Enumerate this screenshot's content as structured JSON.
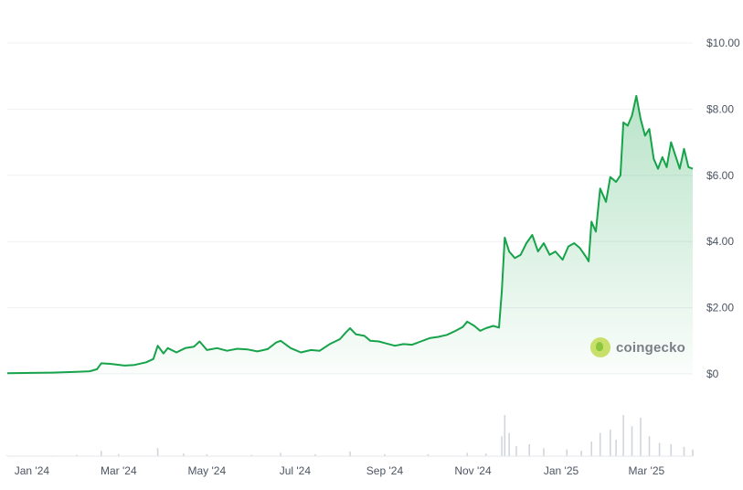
{
  "chart_data": {
    "type": "area",
    "title": "",
    "xlabel": "",
    "ylabel": "",
    "x_tick_labels": [
      "Jan '24",
      "Mar '24",
      "May '24",
      "Jul '24",
      "Sep '24",
      "Nov '24",
      "Jan '25",
      "Mar '25"
    ],
    "y_tick_labels": [
      "$0",
      "$2.00",
      "$4.00",
      "$6.00",
      "$8.00",
      "$10.00"
    ],
    "ylim": [
      0,
      10
    ],
    "grid": true,
    "line_color": "#16a34a",
    "fill_color": "#16a34a",
    "price_series": [
      [
        "2023-12-15",
        0.02
      ],
      [
        "2024-01-01",
        0.03
      ],
      [
        "2024-01-15",
        0.04
      ],
      [
        "2024-02-01",
        0.06
      ],
      [
        "2024-02-10",
        0.08
      ],
      [
        "2024-02-15",
        0.14
      ],
      [
        "2024-02-18",
        0.32
      ],
      [
        "2024-02-25",
        0.3
      ],
      [
        "2024-03-05",
        0.25
      ],
      [
        "2024-03-12",
        0.27
      ],
      [
        "2024-03-20",
        0.35
      ],
      [
        "2024-03-25",
        0.45
      ],
      [
        "2024-03-28",
        0.85
      ],
      [
        "2024-04-01",
        0.62
      ],
      [
        "2024-04-04",
        0.78
      ],
      [
        "2024-04-10",
        0.65
      ],
      [
        "2024-04-16",
        0.78
      ],
      [
        "2024-04-22",
        0.82
      ],
      [
        "2024-04-26",
        0.98
      ],
      [
        "2024-05-01",
        0.72
      ],
      [
        "2024-05-08",
        0.78
      ],
      [
        "2024-05-15",
        0.7
      ],
      [
        "2024-05-22",
        0.76
      ],
      [
        "2024-05-29",
        0.74
      ],
      [
        "2024-06-05",
        0.68
      ],
      [
        "2024-06-12",
        0.75
      ],
      [
        "2024-06-18",
        0.95
      ],
      [
        "2024-06-21",
        1.0
      ],
      [
        "2024-06-28",
        0.78
      ],
      [
        "2024-07-05",
        0.65
      ],
      [
        "2024-07-12",
        0.72
      ],
      [
        "2024-07-18",
        0.7
      ],
      [
        "2024-07-25",
        0.9
      ],
      [
        "2024-08-01",
        1.05
      ],
      [
        "2024-08-05",
        1.25
      ],
      [
        "2024-08-08",
        1.38
      ],
      [
        "2024-08-12",
        1.2
      ],
      [
        "2024-08-18",
        1.15
      ],
      [
        "2024-08-22",
        1.0
      ],
      [
        "2024-08-28",
        0.98
      ],
      [
        "2024-09-02",
        0.92
      ],
      [
        "2024-09-08",
        0.85
      ],
      [
        "2024-09-14",
        0.9
      ],
      [
        "2024-09-20",
        0.88
      ],
      [
        "2024-09-26",
        0.98
      ],
      [
        "2024-10-02",
        1.08
      ],
      [
        "2024-10-08",
        1.12
      ],
      [
        "2024-10-14",
        1.18
      ],
      [
        "2024-10-20",
        1.3
      ],
      [
        "2024-10-25",
        1.42
      ],
      [
        "2024-10-28",
        1.58
      ],
      [
        "2024-11-02",
        1.45
      ],
      [
        "2024-11-06",
        1.3
      ],
      [
        "2024-11-10",
        1.38
      ],
      [
        "2024-11-15",
        1.45
      ],
      [
        "2024-11-19",
        1.4
      ],
      [
        "2024-11-21",
        2.5
      ],
      [
        "2024-11-23",
        4.12
      ],
      [
        "2024-11-26",
        3.7
      ],
      [
        "2024-11-30",
        3.5
      ],
      [
        "2024-12-04",
        3.6
      ],
      [
        "2024-12-08",
        3.95
      ],
      [
        "2024-12-12",
        4.2
      ],
      [
        "2024-12-16",
        3.7
      ],
      [
        "2024-12-20",
        3.95
      ],
      [
        "2024-12-24",
        3.6
      ],
      [
        "2024-12-28",
        3.7
      ],
      [
        "2025-01-02",
        3.45
      ],
      [
        "2025-01-06",
        3.85
      ],
      [
        "2025-01-10",
        3.95
      ],
      [
        "2025-01-14",
        3.8
      ],
      [
        "2025-01-18",
        3.55
      ],
      [
        "2025-01-20",
        3.4
      ],
      [
        "2025-01-22",
        4.6
      ],
      [
        "2025-01-25",
        4.3
      ],
      [
        "2025-01-28",
        5.6
      ],
      [
        "2025-02-01",
        5.2
      ],
      [
        "2025-02-04",
        5.95
      ],
      [
        "2025-02-08",
        5.8
      ],
      [
        "2025-02-11",
        6.0
      ],
      [
        "2025-02-13",
        7.6
      ],
      [
        "2025-02-16",
        7.5
      ],
      [
        "2025-02-19",
        7.8
      ],
      [
        "2025-02-22",
        8.4
      ],
      [
        "2025-02-25",
        7.7
      ],
      [
        "2025-02-28",
        7.2
      ],
      [
        "2025-03-03",
        7.4
      ],
      [
        "2025-03-06",
        6.5
      ],
      [
        "2025-03-09",
        6.2
      ],
      [
        "2025-03-12",
        6.55
      ],
      [
        "2025-03-15",
        6.25
      ],
      [
        "2025-03-18",
        7.0
      ],
      [
        "2025-03-21",
        6.6
      ],
      [
        "2025-03-24",
        6.2
      ],
      [
        "2025-03-27",
        6.8
      ],
      [
        "2025-03-30",
        6.25
      ],
      [
        "2025-04-02",
        6.2
      ]
    ],
    "volume_series": [
      [
        "2023-12-15",
        0.01
      ],
      [
        "2024-01-15",
        0.01
      ],
      [
        "2024-02-01",
        0.02
      ],
      [
        "2024-02-18",
        0.08
      ],
      [
        "2024-03-01",
        0.03
      ],
      [
        "2024-03-28",
        0.12
      ],
      [
        "2024-04-15",
        0.04
      ],
      [
        "2024-05-01",
        0.03
      ],
      [
        "2024-06-01",
        0.02
      ],
      [
        "2024-06-21",
        0.05
      ],
      [
        "2024-07-15",
        0.03
      ],
      [
        "2024-08-08",
        0.07
      ],
      [
        "2024-09-01",
        0.03
      ],
      [
        "2024-10-01",
        0.03
      ],
      [
        "2024-10-28",
        0.05
      ],
      [
        "2024-11-10",
        0.04
      ],
      [
        "2024-11-21",
        0.3
      ],
      [
        "2024-11-23",
        0.62
      ],
      [
        "2024-11-26",
        0.35
      ],
      [
        "2024-12-01",
        0.15
      ],
      [
        "2024-12-10",
        0.18
      ],
      [
        "2024-12-20",
        0.12
      ],
      [
        "2025-01-05",
        0.1
      ],
      [
        "2025-01-15",
        0.08
      ],
      [
        "2025-01-22",
        0.22
      ],
      [
        "2025-01-28",
        0.35
      ],
      [
        "2025-02-04",
        0.4
      ],
      [
        "2025-02-08",
        0.25
      ],
      [
        "2025-02-13",
        0.62
      ],
      [
        "2025-02-19",
        0.45
      ],
      [
        "2025-02-25",
        0.58
      ],
      [
        "2025-03-03",
        0.3
      ],
      [
        "2025-03-10",
        0.2
      ],
      [
        "2025-03-18",
        0.18
      ],
      [
        "2025-03-27",
        0.14
      ],
      [
        "2025-04-02",
        0.1
      ]
    ]
  },
  "watermark": {
    "text": "coingecko",
    "icon": "coingecko-logo-icon"
  }
}
